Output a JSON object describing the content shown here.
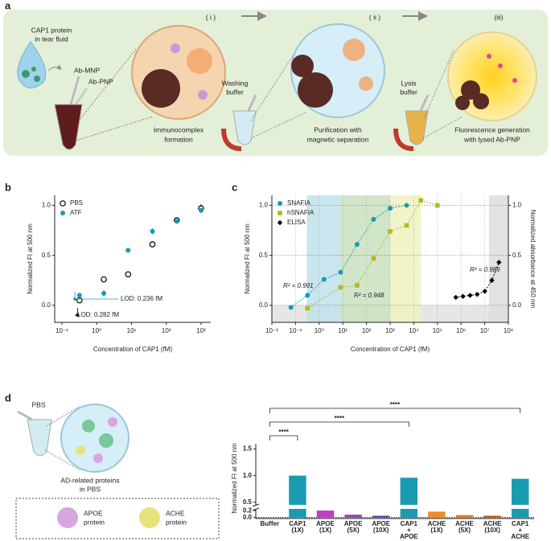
{
  "panel_labels": [
    "a",
    "b",
    "c",
    "d"
  ],
  "panel_a": {
    "sample": [
      "CAP1 protein",
      "in tear fluid"
    ],
    "probes": [
      "Ab-MNP",
      "Ab-PNP"
    ],
    "steps": [
      "( i )",
      "( ii )",
      "(iii)"
    ],
    "buffers": [
      [
        "Washing",
        "buffer"
      ],
      [
        "Lysis",
        "buffer"
      ]
    ],
    "captions": [
      [
        "Immunocomplex",
        "formation"
      ],
      [
        "Purification with",
        "magnetic separation"
      ],
      [
        "Fluorescence generation",
        "with lysed Ab-PNP"
      ]
    ]
  },
  "panel_d_schematic": {
    "tube": "PBS",
    "caption": [
      "AD-related proteins",
      "in PBS"
    ],
    "legend": [
      [
        "APOE",
        "protein"
      ],
      [
        "ACHE",
        "protein"
      ]
    ]
  },
  "chart_data": [
    {
      "type": "scatter",
      "xscale": "log",
      "xlabel": "Concentration of CAP1 (fM)",
      "ylabel": "Normalized FI at 500 nm",
      "xlim": [
        0.062,
        1900
      ],
      "xticks": [
        {
          "value": 0.1,
          "label": "10⁻¹"
        },
        {
          "value": 1,
          "label": "10⁰"
        },
        {
          "value": 10,
          "label": "10¹"
        },
        {
          "value": 100,
          "label": "10²"
        },
        {
          "value": 1000,
          "label": "10³"
        }
      ],
      "ylim": [
        -0.17,
        1.1
      ],
      "yticks": [
        {
          "value": 0,
          "label": "0.0"
        },
        0.5,
        {
          "value": 1,
          "label": "1.0"
        }
      ],
      "legend": "upper left",
      "series": [
        {
          "name": "PBS",
          "color": "#000000",
          "marker": "open-circle",
          "x": [
            0.32,
            1.6,
            8,
            40,
            200,
            1000
          ],
          "values": [
            0.05,
            0.26,
            0.31,
            0.61,
            0.85,
            0.97
          ],
          "errors": [
            0.01,
            0.01,
            0.01,
            0.01,
            0.02,
            0.04
          ],
          "lod": {
            "value": 0.282,
            "label": "LOD: 0.282 fM"
          }
        },
        {
          "name": "ATF",
          "color": "#1a9bb0",
          "marker": "circle",
          "x": [
            0.32,
            1.6,
            8,
            40,
            200,
            1000
          ],
          "values": [
            0.1,
            0.12,
            0.55,
            0.74,
            0.84,
            0.95
          ],
          "errors": [
            0.02,
            0.03,
            0.02,
            0.03,
            0.02,
            0.03
          ],
          "lod": {
            "value": 0.236,
            "label": "LOD: 0.236 fM"
          }
        }
      ]
    },
    {
      "type": "scatter",
      "xscale": "log",
      "xlabel": "Concentration of CAP1 (fM)",
      "ylabel": "Normalized FI at 500 nm",
      "y2label": "Normalized absorbance at 450 nm",
      "xlim": [
        0.01,
        100000000
      ],
      "xticks": [
        {
          "value": 0.01,
          "label": "10⁻²"
        },
        {
          "value": 0.1,
          "label": "10⁻¹"
        },
        {
          "value": 1,
          "label": "10⁰"
        },
        {
          "value": 10,
          "label": "10¹"
        },
        {
          "value": 100,
          "label": "10²"
        },
        {
          "value": 1000,
          "label": "10³"
        },
        {
          "value": 10000,
          "label": "10⁴"
        },
        {
          "value": 100000,
          "label": "10⁵"
        },
        {
          "value": 1000000,
          "label": "10⁶"
        },
        {
          "value": 10000000,
          "label": "10⁷"
        },
        {
          "value": 100000000,
          "label": "10⁸"
        }
      ],
      "ylim": [
        -0.17,
        1.1
      ],
      "yticks": [
        {
          "value": 0,
          "label": "0.0"
        },
        0.5,
        {
          "value": 1,
          "label": "1.0"
        }
      ],
      "y2lim": [
        -0.17,
        1.1
      ],
      "y2ticks": [
        {
          "value": 0,
          "label": "0.0"
        },
        0.5,
        {
          "value": 1,
          "label": "1.0"
        }
      ],
      "grid": true,
      "legend": "upper left",
      "below_zero_shade": "#e6e6e6",
      "bands": [
        {
          "from": 0.3,
          "to": 8,
          "color": "#bfe0ea"
        },
        {
          "from": 8,
          "to": 1000,
          "color": "#c9e2bf"
        },
        {
          "from": 1000,
          "to": 20000,
          "color": "#eef2bf"
        },
        {
          "from": 15000000,
          "to": 100000000,
          "color": "#dddddd"
        }
      ],
      "series": [
        {
          "name": "SNAFIA",
          "color": "#1a9bb0",
          "marker": "circle",
          "fit": true,
          "r2": "R² = 0.991",
          "x": [
            0.064,
            0.32,
            1.6,
            8,
            40,
            200,
            1000,
            5000
          ],
          "values": [
            -0.02,
            0.1,
            0.26,
            0.33,
            0.61,
            0.86,
            0.97,
            1.0
          ]
        },
        {
          "name": "hSNAFIA",
          "color": "#b5b81e",
          "marker": "square",
          "fit": true,
          "r2": "R² = 0.948",
          "x": [
            0.32,
            8,
            40,
            200,
            1000,
            5000,
            20000,
            100000
          ],
          "values": [
            -0.03,
            0.18,
            0.2,
            0.47,
            0.74,
            0.8,
            1.05,
            1.0
          ]
        },
        {
          "name": "ELISA",
          "color": "#000000",
          "marker": "diamond",
          "fit": true,
          "axis": "y2",
          "r2": "R² = 0.989",
          "x": [
            600000,
            1200000,
            2400000,
            4800000,
            10000000,
            20000000,
            40000000
          ],
          "values": [
            0.08,
            0.09,
            0.1,
            0.11,
            0.14,
            0.25,
            0.43
          ]
        }
      ]
    },
    {
      "type": "bar",
      "ylabel": "Normalized FI at 500 nm",
      "categories": [
        [
          "Buffer"
        ],
        [
          "CAP1",
          "(1X)"
        ],
        [
          "APOE",
          "(1X)"
        ],
        [
          "APOE",
          "(5X)"
        ],
        [
          "APOE",
          "(10X)"
        ],
        [
          "CAP1",
          "+",
          "APOE"
        ],
        [
          "ACHE",
          "(1X)"
        ],
        [
          "ACHE",
          "(5X)"
        ],
        [
          "ACHE",
          "(10X)"
        ],
        [
          "CAP1",
          "+",
          "ACHE"
        ]
      ],
      "values": [
        0,
        1.0,
        0.2,
        0.08,
        0.05,
        0.96,
        0.17,
        0.07,
        0.05,
        0.94
      ],
      "colors": [
        "#888888",
        "#1a9bb0",
        "#c23bc4",
        "#8e44ad",
        "#6a3d9a",
        "#1a9bb0",
        "#f28c28",
        "#e67e22",
        "#d35400",
        "#1a9bb0"
      ],
      "ylim": [
        -0.03,
        1.6
      ],
      "ybreak": [
        0.25,
        0.45
      ],
      "yticks": [
        {
          "value": 0,
          "label": "0.0"
        },
        0.2,
        0.5,
        {
          "value": 1,
          "label": "1.0"
        },
        1.5
      ],
      "significance": [
        "****",
        "****",
        "****"
      ]
    }
  ]
}
